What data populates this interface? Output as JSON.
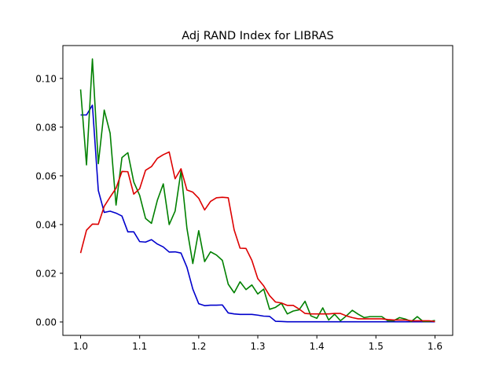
{
  "chart_data": {
    "type": "line",
    "title": "Adj RAND Index for LIBRAS",
    "xlabel": "",
    "ylabel": "",
    "xlim": [
      0.97,
      1.63
    ],
    "ylim": [
      -0.0055,
      0.1135
    ],
    "xticks": [
      1.0,
      1.1,
      1.2,
      1.3,
      1.4,
      1.5,
      1.6
    ],
    "xtick_labels": [
      "1.0",
      "1.1",
      "1.2",
      "1.3",
      "1.4",
      "1.5",
      "1.6"
    ],
    "yticks": [
      0.0,
      0.02,
      0.04,
      0.06,
      0.08,
      0.1
    ],
    "ytick_labels": [
      "0.00",
      "0.02",
      "0.04",
      "0.06",
      "0.08",
      "0.10"
    ],
    "x": [
      1.0,
      1.01,
      1.02,
      1.03,
      1.04,
      1.05,
      1.06,
      1.07,
      1.08,
      1.09,
      1.1,
      1.11,
      1.12,
      1.13,
      1.14,
      1.15,
      1.16,
      1.17,
      1.18,
      1.19,
      1.2,
      1.21,
      1.22,
      1.23,
      1.24,
      1.25,
      1.26,
      1.27,
      1.28,
      1.29,
      1.3,
      1.31,
      1.32,
      1.33,
      1.34,
      1.35,
      1.36,
      1.37,
      1.38,
      1.39,
      1.4,
      1.41,
      1.42,
      1.43,
      1.44,
      1.45,
      1.46,
      1.47,
      1.48,
      1.49,
      1.5,
      1.51,
      1.52,
      1.53,
      1.54,
      1.55,
      1.56,
      1.57,
      1.58,
      1.59,
      1.6
    ],
    "series": [
      {
        "color": "#0000cc",
        "values": [
          0.085,
          0.085,
          0.089,
          0.054,
          0.045,
          0.0455,
          0.0447,
          0.0435,
          0.037,
          0.037,
          0.033,
          0.0328,
          0.0338,
          0.032,
          0.0308,
          0.0287,
          0.0288,
          0.0283,
          0.0225,
          0.0135,
          0.0075,
          0.0067,
          0.0069,
          0.0069,
          0.007,
          0.0037,
          0.0033,
          0.0031,
          0.0031,
          0.0031,
          0.0028,
          0.0024,
          0.0023,
          0.0003,
          0.0002,
          0.0001,
          0.0001,
          0.0001,
          0.0001,
          0.0001,
          0.0001,
          0.0001,
          0.0001,
          0.0001,
          0.0001,
          0.0001,
          0.0001,
          0.0001,
          0.0001,
          0.0001,
          0.0001,
          0.0001,
          0.0001,
          0.0001,
          0.0001,
          0.0001,
          0.0001,
          0.0001,
          0.0001,
          0.0001,
          0.0001
        ]
      },
      {
        "color": "#008000",
        "values": [
          0.0955,
          0.0645,
          0.108,
          0.065,
          0.087,
          0.0775,
          0.048,
          0.0675,
          0.0695,
          0.0575,
          0.052,
          0.0425,
          0.0405,
          0.05,
          0.0567,
          0.04,
          0.0455,
          0.062,
          0.0385,
          0.024,
          0.0375,
          0.0248,
          0.0288,
          0.0275,
          0.0253,
          0.0155,
          0.012,
          0.0165,
          0.0133,
          0.0152,
          0.0115,
          0.0135,
          0.0052,
          0.006,
          0.0077,
          0.0033,
          0.0045,
          0.005,
          0.0085,
          0.0025,
          0.0015,
          0.0058,
          0.0008,
          0.0032,
          0.0005,
          0.0025,
          0.0048,
          0.0032,
          0.0018,
          0.0022,
          0.0022,
          0.0022,
          0.0005,
          0.0005,
          0.0018,
          0.0012,
          0.0002,
          0.0022,
          0.0002,
          0.0002,
          0.0006
        ]
      },
      {
        "color": "#dd0000",
        "values": [
          0.0283,
          0.0377,
          0.0402,
          0.0401,
          0.0475,
          0.0513,
          0.0549,
          0.0618,
          0.0617,
          0.0525,
          0.0547,
          0.0623,
          0.0638,
          0.0672,
          0.0687,
          0.0698,
          0.0588,
          0.0629,
          0.0542,
          0.0533,
          0.0508,
          0.046,
          0.0495,
          0.051,
          0.0512,
          0.051,
          0.0378,
          0.0303,
          0.0302,
          0.0253,
          0.0178,
          0.0148,
          0.0108,
          0.0082,
          0.0078,
          0.0068,
          0.0068,
          0.0053,
          0.0035,
          0.0033,
          0.0033,
          0.0033,
          0.0033,
          0.0035,
          0.0035,
          0.0025,
          0.0018,
          0.0013,
          0.0013,
          0.0013,
          0.0013,
          0.0013,
          0.001,
          0.0008,
          0.0008,
          0.0008,
          0.0005,
          0.0005,
          0.0005,
          0.0005,
          0.0002
        ]
      }
    ],
    "grid": false,
    "legend": "none"
  }
}
